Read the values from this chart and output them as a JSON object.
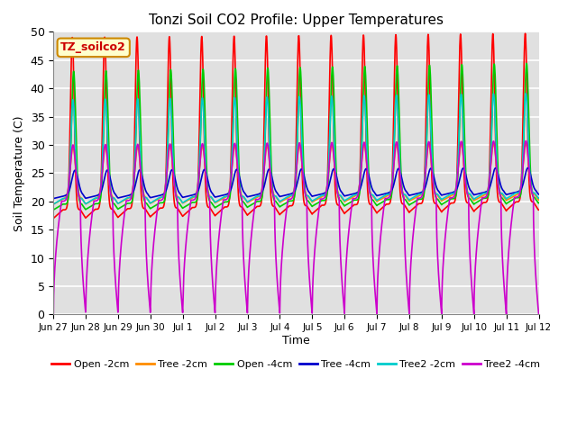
{
  "title": "Tonzi Soil CO2 Profile: Upper Temperatures",
  "ylabel": "Soil Temperature (C)",
  "xlabel": "Time",
  "annotation": "TZ_soilco2",
  "ylim": [
    0,
    50
  ],
  "yticks": [
    0,
    5,
    10,
    15,
    20,
    25,
    30,
    35,
    40,
    45,
    50
  ],
  "xtick_labels": [
    "Jun 27",
    "Jun 28",
    "Jun 29",
    "Jun 30",
    "Jul 1",
    "Jul 2",
    "Jul 3",
    "Jul 4",
    "Jul 5",
    "Jul 6",
    "Jul 7",
    "Jul 8",
    "Jul 9",
    "Jul 10",
    "Jul 11",
    "Jul 12"
  ],
  "series": [
    {
      "label": "Open -2cm",
      "color": "#FF0000",
      "lw": 1.2
    },
    {
      "label": "Tree -2cm",
      "color": "#FF8C00",
      "lw": 1.2
    },
    {
      "label": "Open -4cm",
      "color": "#00CC00",
      "lw": 1.2
    },
    {
      "label": "Tree -4cm",
      "color": "#0000CC",
      "lw": 1.2
    },
    {
      "label": "Tree2 -2cm",
      "color": "#00CCCC",
      "lw": 1.2
    },
    {
      "label": "Tree2 -4cm",
      "color": "#CC00CC",
      "lw": 1.2
    }
  ],
  "background_color": "#E0E0E0",
  "grid_color": "#FFFFFF",
  "annotation_bg": "#FFFFCC",
  "annotation_border": "#CC8800",
  "figsize": [
    6.4,
    4.8
  ],
  "dpi": 100
}
